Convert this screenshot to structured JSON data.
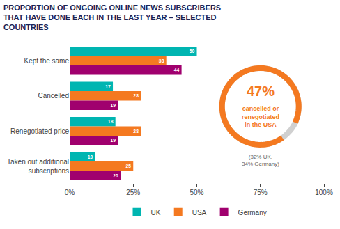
{
  "chart_data": {
    "type": "bar",
    "orientation": "horizontal",
    "title": "PROPORTION OF ONGOING ONLINE NEWS SUBSCRIBERS\nTHAT HAVE DONE EACH IN THE LAST YEAR – SELECTED\nCOUNTRIES",
    "categories": [
      "Kept the same",
      "Cancelled",
      "Renegotiated price",
      "Taken out additional\nsubscriptions"
    ],
    "series": [
      {
        "name": "UK",
        "color": "#00b5b1",
        "values": [
          50,
          17,
          18,
          10
        ]
      },
      {
        "name": "USA",
        "color": "#f47920",
        "values": [
          38,
          28,
          28,
          25
        ]
      },
      {
        "name": "Germany",
        "color": "#a0006e",
        "values": [
          44,
          19,
          19,
          20
        ]
      }
    ],
    "xlim": [
      0,
      100
    ],
    "xticks": [
      {
        "value": 0,
        "label": "0%"
      },
      {
        "value": 25,
        "label": "25%"
      },
      {
        "value": 50,
        "label": "50%"
      },
      {
        "value": 75,
        "label": "75%"
      },
      {
        "value": 100,
        "label": "100%"
      }
    ],
    "grid": false,
    "data_labels": true,
    "legend": "bottom",
    "annotations": [
      {
        "text": "47%",
        "color": "#f47920"
      },
      {
        "text": "cancelled or\nrenegotiated\nin the USA",
        "color": "#f47920"
      },
      {
        "text": "(32% UK,\n34% Germany)"
      }
    ]
  }
}
